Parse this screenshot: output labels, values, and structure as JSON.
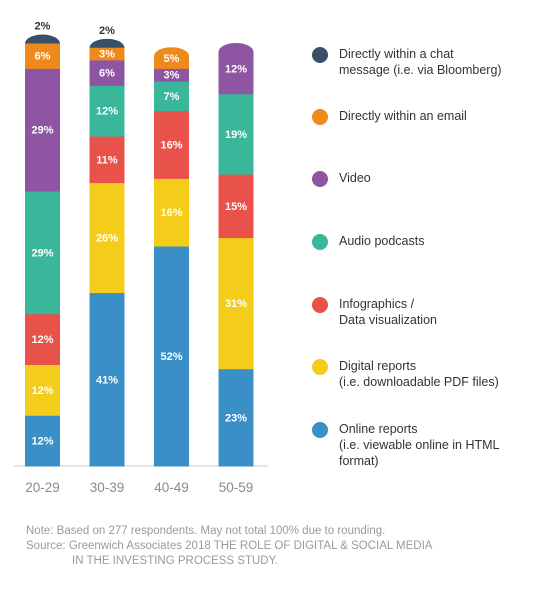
{
  "chart_data": {
    "type": "bar",
    "stacked": true,
    "orientation": "vertical",
    "ylim": [
      0,
      100
    ],
    "categories": [
      "20-29",
      "30-39",
      "40-49",
      "50-59"
    ],
    "series": [
      {
        "name": "Online reports\n(i.e. viewable online in HTML\nformat)",
        "color": "#3a8fc7",
        "values": [
          12,
          41,
          52,
          23
        ]
      },
      {
        "name": "Digital reports\n(i.e. downloadable PDF files)",
        "color": "#f3cd1a",
        "values": [
          12,
          26,
          16,
          31
        ]
      },
      {
        "name": "Infographics /\nData visualization",
        "color": "#e8524a",
        "values": [
          12,
          11,
          16,
          15
        ]
      },
      {
        "name": "Audio podcasts",
        "color": "#3ab79b",
        "values": [
          29,
          12,
          7,
          19
        ]
      },
      {
        "name": "Video",
        "color": "#8e55a3",
        "values": [
          29,
          6,
          3,
          12
        ]
      },
      {
        "name": "Directly within an email",
        "color": "#ee8a1b",
        "values": [
          6,
          3,
          5,
          0
        ]
      },
      {
        "name": "Directly within a chat\nmessage (i.e. via Bloomberg)",
        "color": "#3a5068",
        "values": [
          2,
          2,
          0,
          0
        ]
      }
    ],
    "data_labels": [
      [
        "12%",
        "41%",
        "52%",
        "23%"
      ],
      [
        "12%",
        "26%",
        "16%",
        "31%"
      ],
      [
        "12%",
        "11%",
        "16%",
        "15%"
      ],
      [
        "29%",
        "12%",
        "7%",
        "19%"
      ],
      [
        "29%",
        "6%",
        "3%",
        "12%"
      ],
      [
        "6%",
        "3%",
        "5%",
        ""
      ],
      [
        "2%",
        "2%",
        "",
        ""
      ]
    ],
    "legend_position": "right",
    "grid": false
  },
  "note": {
    "line1": "Note: Based on 277 respondents. May not total 100% due to rounding.",
    "line2": "Source: Greenwich Associates 2018 THE ROLE OF DIGITAL & SOCIAL MEDIA",
    "line3": "IN THE INVESTING PROCESS STUDY."
  }
}
